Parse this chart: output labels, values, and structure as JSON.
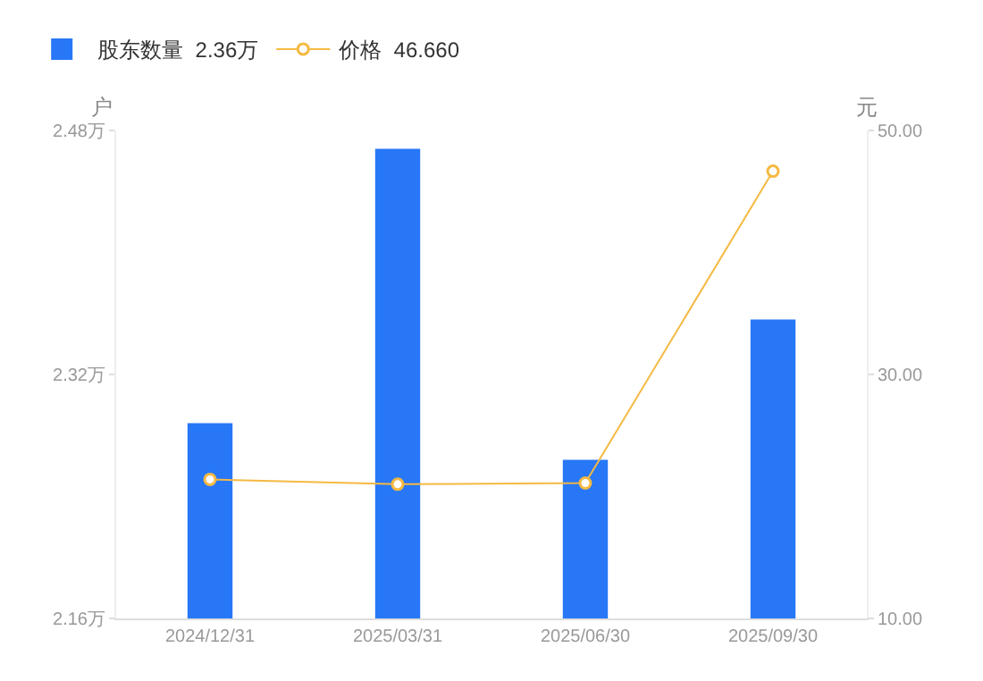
{
  "chart_data": {
    "type": "bar",
    "ylabel": "户",
    "y2label": "元",
    "categories": [
      "2024/12/31",
      "2025/03/31",
      "2025/06/30",
      "2025/09/30"
    ],
    "series": [
      {
        "name": "股东数量  2.36万",
        "color": "#2777f6",
        "values": [
          2.288,
          2.468,
          2.264,
          2.356
        ]
      },
      {
        "name": "价格  46.660",
        "type": "line",
        "axis": "y2",
        "color": "#f5b942",
        "marker": "circle",
        "values": [
          21.4,
          21.0,
          21.1,
          46.66
        ]
      }
    ],
    "ylim": [
      2.16,
      2.48
    ],
    "yticks": [
      {
        "value": 2.16,
        "label": "2.16万"
      },
      {
        "value": 2.32,
        "label": "2.32万"
      },
      {
        "value": 2.48,
        "label": "2.48万"
      }
    ],
    "y2lim": [
      10,
      50
    ],
    "y2ticks": [
      {
        "value": 10,
        "label": "10.00"
      },
      {
        "value": 30,
        "label": "30.00"
      },
      {
        "value": 50,
        "label": "50.00"
      }
    ],
    "grid": false,
    "legend": "top left"
  }
}
